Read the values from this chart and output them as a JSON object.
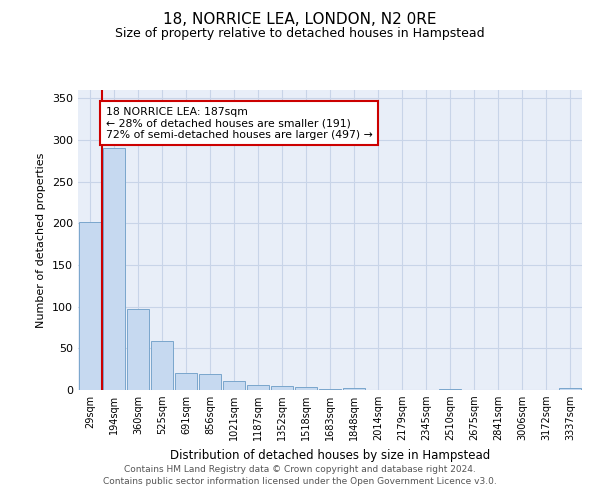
{
  "title": "18, NORRICE LEA, LONDON, N2 0RE",
  "subtitle": "Size of property relative to detached houses in Hampstead",
  "xlabel": "Distribution of detached houses by size in Hampstead",
  "ylabel": "Number of detached properties",
  "categories": [
    "29sqm",
    "194sqm",
    "360sqm",
    "525sqm",
    "691sqm",
    "856sqm",
    "1021sqm",
    "1187sqm",
    "1352sqm",
    "1518sqm",
    "1683sqm",
    "1848sqm",
    "2014sqm",
    "2179sqm",
    "2345sqm",
    "2510sqm",
    "2675sqm",
    "2841sqm",
    "3006sqm",
    "3172sqm",
    "3337sqm"
  ],
  "values": [
    202,
    291,
    97,
    59,
    20,
    19,
    11,
    6,
    5,
    4,
    1,
    3,
    0,
    0,
    0,
    1,
    0,
    0,
    0,
    0,
    3
  ],
  "bar_color": "#c6d9f0",
  "bar_edge_color": "#7aa6cc",
  "grid_color": "#c8d4e8",
  "background_color": "#ffffff",
  "plot_bg_color": "#e8eef8",
  "annotation_text": "18 NORRICE LEA: 187sqm\n← 28% of detached houses are smaller (191)\n72% of semi-detached houses are larger (497) →",
  "annotation_box_color": "#ffffff",
  "annotation_box_edge": "#cc0000",
  "property_line_color": "#cc0000",
  "vline_x": 0.5,
  "ylim": [
    0,
    360
  ],
  "yticks": [
    0,
    50,
    100,
    150,
    200,
    250,
    300,
    350
  ],
  "footer_line1": "Contains HM Land Registry data © Crown copyright and database right 2024.",
  "footer_line2": "Contains public sector information licensed under the Open Government Licence v3.0."
}
